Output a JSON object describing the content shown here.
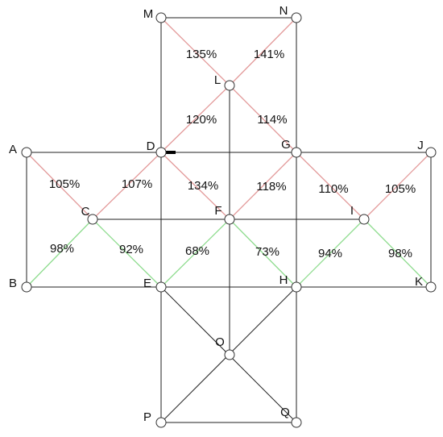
{
  "nodes": [
    "M",
    "N",
    "L",
    "A",
    "D",
    "G",
    "J",
    "C",
    "F",
    "I",
    "B",
    "E",
    "H",
    "K",
    "O",
    "P",
    "Q"
  ],
  "edge_labels": [
    "135%",
    "141%",
    "120%",
    "114%",
    "105%",
    "107%",
    "134%",
    "118%",
    "110%",
    "105%",
    "98%",
    "92%",
    "68%",
    "73%",
    "94%",
    "98%"
  ]
}
